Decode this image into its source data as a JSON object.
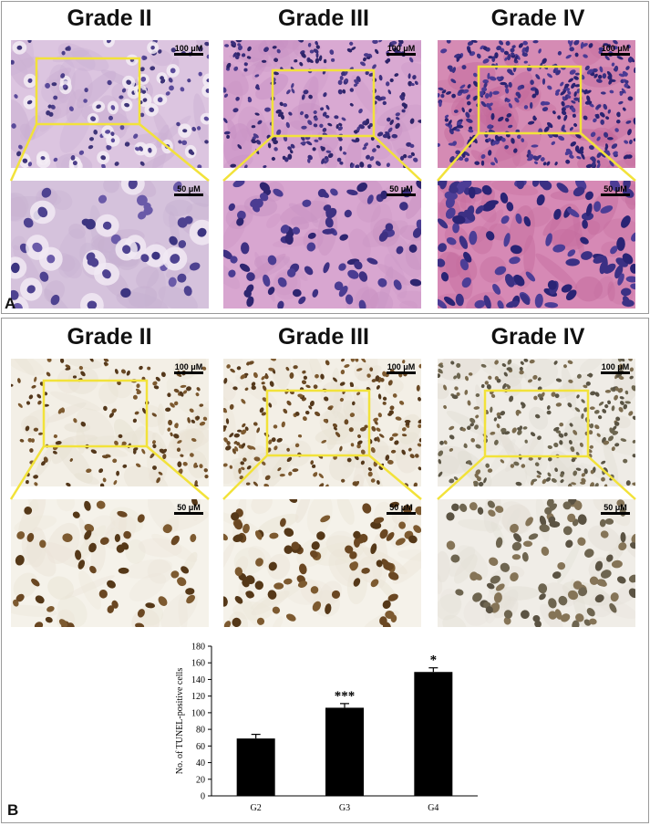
{
  "panel_a": {
    "letter": "A",
    "columns": [
      {
        "title": "Grade II",
        "scale_top": "100 μM",
        "scale_bottom": "50 μM"
      },
      {
        "title": "Grade III",
        "scale_top": "100 μM",
        "scale_bottom": "50 μM"
      },
      {
        "title": "Grade IV",
        "scale_top": "100 μM",
        "scale_bottom": "50 μM"
      }
    ]
  },
  "panel_b": {
    "letter": "B",
    "columns": [
      {
        "title": "Grade II",
        "scale_top": "100 μM",
        "scale_bottom": "50 μM"
      },
      {
        "title": "Grade III",
        "scale_top": "100 μM",
        "scale_bottom": "50 μM"
      },
      {
        "title": "Grade IV",
        "scale_top": "100 μM",
        "scale_bottom": "50 μM"
      }
    ]
  },
  "colors": {
    "highlight": "#f2e23a",
    "bar": "#000000",
    "he_bg": "#d9b9d8",
    "ihc_bg": "#f3eee4"
  },
  "chart_data": {
    "type": "bar",
    "categories": [
      "G2",
      "G3",
      "G4"
    ],
    "values": [
      69,
      106,
      149
    ],
    "errors": [
      5,
      5,
      5
    ],
    "significance": [
      "",
      "***",
      "*"
    ],
    "ylabel": "No. of TUNEL-positive cells",
    "ylim": [
      0,
      180
    ],
    "yticks": [
      0,
      20,
      40,
      60,
      80,
      100,
      120,
      140,
      160,
      180
    ],
    "grid": false
  }
}
